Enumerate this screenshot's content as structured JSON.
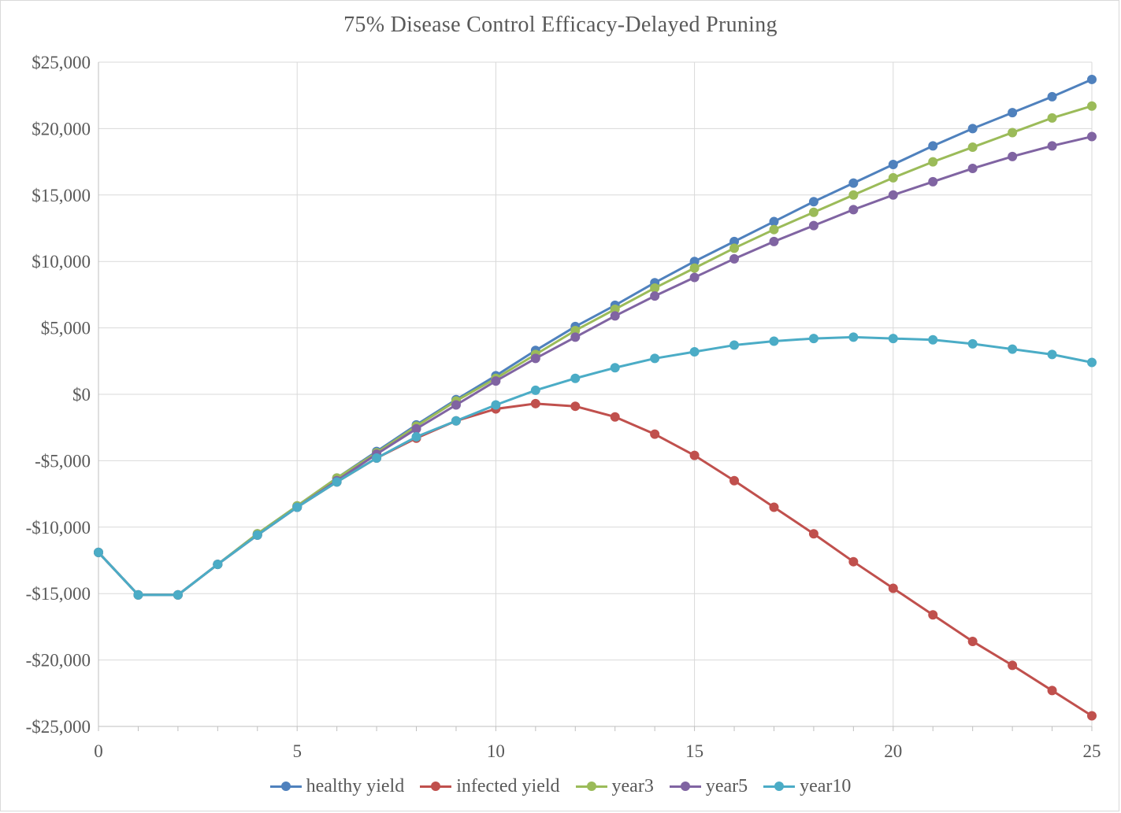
{
  "chart_data": {
    "type": "line",
    "title": "75% Disease Control Efficacy-Delayed Pruning",
    "xlabel": "",
    "ylabel": "",
    "x": [
      0,
      1,
      2,
      3,
      4,
      5,
      6,
      7,
      8,
      9,
      10,
      11,
      12,
      13,
      14,
      15,
      16,
      17,
      18,
      19,
      20,
      21,
      22,
      23,
      24,
      25
    ],
    "xlim": [
      0,
      25
    ],
    "ylim": [
      -25000,
      25000
    ],
    "x_ticks": [
      0,
      5,
      10,
      15,
      20,
      25
    ],
    "x_tick_labels": [
      "0",
      "5",
      "10",
      "15",
      "20",
      "25"
    ],
    "y_ticks": [
      25000,
      20000,
      15000,
      10000,
      5000,
      0,
      -5000,
      -10000,
      -15000,
      -20000,
      -25000
    ],
    "y_tick_labels": [
      "$25,000",
      "$20,000",
      "$15,000",
      "$10,000",
      "$5,000",
      "$0",
      "-$5,000",
      "-$10,000",
      "-$15,000",
      "-$20,000",
      "-$25,000"
    ],
    "grid": true,
    "legend_position": "bottom",
    "series": [
      {
        "name": "healthy yield",
        "color": "#4f81bd",
        "values": [
          -11900,
          -15100,
          -15100,
          -12800,
          -10500,
          -8400,
          -6300,
          -4300,
          -2300,
          -400,
          1400,
          3300,
          5100,
          6700,
          8400,
          10000,
          11500,
          13000,
          14500,
          15900,
          17300,
          18700,
          20000,
          21200,
          22400,
          23700
        ]
      },
      {
        "name": "infected yield",
        "color": "#c0504d",
        "values": [
          -11900,
          -15100,
          -15100,
          -12800,
          -10600,
          -8500,
          -6600,
          -4800,
          -3300,
          -2000,
          -1100,
          -700,
          -900,
          -1700,
          -3000,
          -4600,
          -6500,
          -8500,
          -10500,
          -12600,
          -14600,
          -16600,
          -18600,
          -20400,
          -22300,
          -24200
        ]
      },
      {
        "name": "year3",
        "color": "#9bbb59",
        "values": [
          -11900,
          -15100,
          -15100,
          -12800,
          -10500,
          -8400,
          -6300,
          -4400,
          -2400,
          -500,
          1200,
          3000,
          4800,
          6400,
          8000,
          9500,
          11000,
          12400,
          13700,
          15000,
          16300,
          17500,
          18600,
          19700,
          20800,
          21700
        ]
      },
      {
        "name": "year5",
        "color": "#8064a2",
        "values": [
          -11900,
          -15100,
          -15100,
          -12800,
          -10600,
          -8500,
          -6500,
          -4500,
          -2600,
          -800,
          1000,
          2700,
          4300,
          5900,
          7400,
          8800,
          10200,
          11500,
          12700,
          13900,
          15000,
          16000,
          17000,
          17900,
          18700,
          19400
        ]
      },
      {
        "name": "year10",
        "color": "#4bacc6",
        "values": [
          -11900,
          -15100,
          -15100,
          -12800,
          -10600,
          -8500,
          -6600,
          -4800,
          -3200,
          -2000,
          -800,
          300,
          1200,
          2000,
          2700,
          3200,
          3700,
          4000,
          4200,
          4300,
          4200,
          4100,
          3800,
          3400,
          3000,
          2400
        ]
      }
    ]
  }
}
